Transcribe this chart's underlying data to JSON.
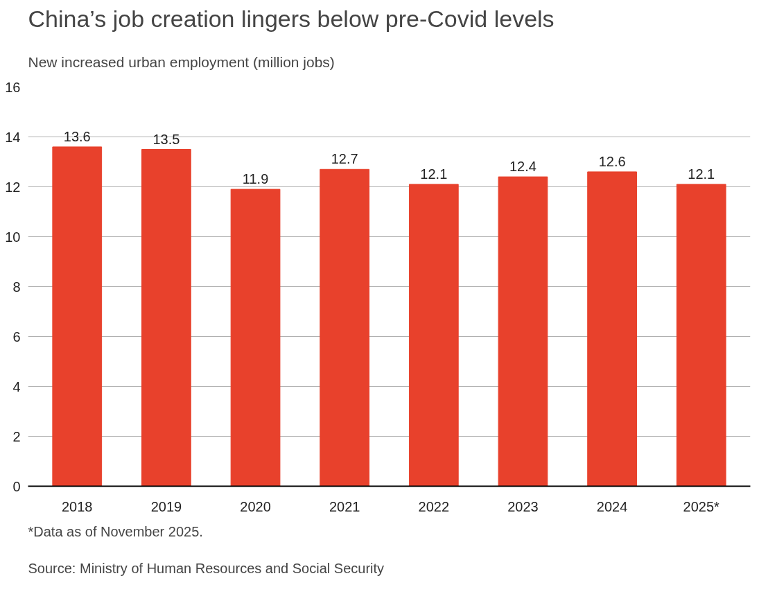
{
  "chart_data": {
    "type": "bar",
    "title": "China’s job creation lingers below pre-Covid levels",
    "subtitle": "New increased urban employment (million jobs)",
    "categories": [
      "2018",
      "2019",
      "2020",
      "2021",
      "2022",
      "2023",
      "2024",
      "2025*"
    ],
    "values": [
      13.6,
      13.5,
      11.9,
      12.7,
      12.1,
      12.4,
      12.6,
      12.1
    ],
    "color": "#e8412c",
    "ylim": [
      0,
      16
    ],
    "yticks": [
      0,
      2,
      4,
      6,
      8,
      10,
      12,
      14,
      16
    ],
    "grid": "y",
    "data_labels": true,
    "annotations": [
      "*Data as of November 2025.",
      "Source: Ministry of Human Resources and Social Security"
    ]
  }
}
